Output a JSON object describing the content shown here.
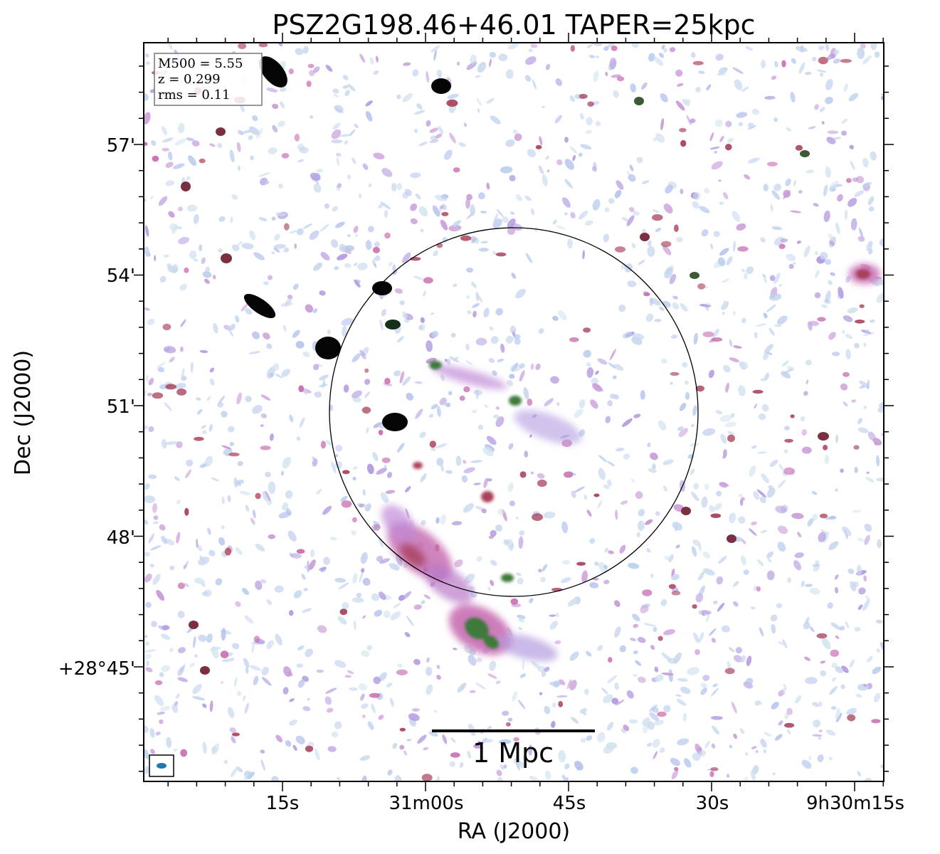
{
  "figure": {
    "title": "PSZ2G198.46+46.01 TAPER=25kpc",
    "xlabel": "RA (J2000)",
    "ylabel": "Dec (J2000)",
    "x_ticks": [
      "15s",
      "31m00s",
      "45s",
      "30s",
      "9h30m15s"
    ],
    "y_ticks": [
      "57'",
      "54'",
      "51'",
      "48'",
      "+28°45'"
    ],
    "info": {
      "m500": "M500 = 5.55",
      "z": "z = 0.299",
      "rms": "rms = 0.11"
    },
    "scalebar_label": "1 Mpc",
    "colors": {
      "frame": "#000000",
      "noise_light": "#c9d8ee",
      "noise_mid": "#b39be0",
      "emission_pink": "#c86fb2",
      "emission_red": "#a8405a",
      "emission_green": "#3d7a3a",
      "compact_source": "#050505",
      "beam": "#1f77b4"
    }
  }
}
